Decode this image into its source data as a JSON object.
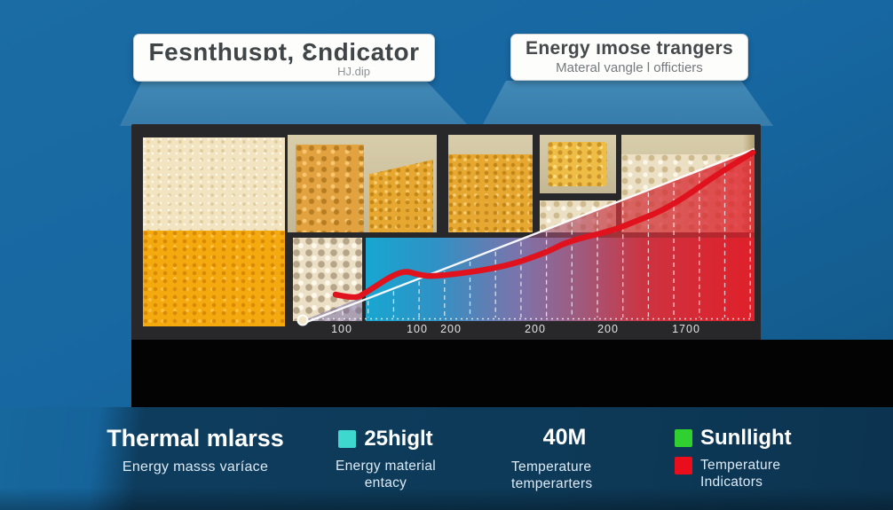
{
  "header": {
    "box1": {
      "title": "Fesnthusɒt, Ɛndicator",
      "subtitle": "HJ.dip"
    },
    "box2": {
      "title": "Energy ımose trangers",
      "subtitle": "Materal vangle l offictiers"
    }
  },
  "panel": {
    "axis_labels": [
      "100",
      "100",
      "200",
      "200",
      "200",
      "1700"
    ]
  },
  "chart_data": {
    "type": "line",
    "title": "",
    "xlabel": "",
    "ylabel": "",
    "x_tick_labels": [
      "100",
      "100",
      "200",
      "200",
      "200",
      "1700"
    ],
    "grid": "dashed-white-vertical",
    "background_gradient": [
      "#17a7d1",
      "#7d73aa",
      "#e0202a"
    ],
    "legend_position": "bottom",
    "series": [
      {
        "name": "Temperature Indicators",
        "color": "#e0121d",
        "points_normalized": [
          [
            0.056,
            0.152
          ],
          [
            0.1,
            0.127
          ],
          [
            0.124,
            0.162
          ],
          [
            0.204,
            0.294
          ],
          [
            0.244,
            0.264
          ],
          [
            0.28,
            0.254
          ],
          [
            0.43,
            0.305
          ],
          [
            0.53,
            0.391
          ],
          [
            0.58,
            0.457
          ],
          [
            0.68,
            0.518
          ],
          [
            0.73,
            0.569
          ],
          [
            0.79,
            0.629
          ],
          [
            0.85,
            0.721
          ],
          [
            0.9,
            0.812
          ],
          [
            0.95,
            0.893
          ],
          [
            0.996,
            0.964
          ]
        ]
      }
    ]
  },
  "stats": [
    {
      "title": "Thermal mlarss",
      "subtitle": "Energy masss varíace"
    },
    {
      "title": "25higlt",
      "subtitle_line1": "Energy material",
      "subtitle_line2": "entacy",
      "swatch_color": "#3ed8cf"
    },
    {
      "title": "40M",
      "subtitle_line1": "Temperature",
      "subtitle_line2": "temperarters"
    },
    {
      "title": "Sunllight",
      "subtitle_line1": "Temperature",
      "subtitle_line2": "Indicators",
      "swatch1_color": "#2fd02f",
      "swatch2_color": "#ea0e1c"
    }
  ],
  "colors": {
    "background_blue": "#1767a2",
    "beam_blue": "#3d83b2",
    "panel_frame": "#28282a",
    "black_band": "#030303",
    "stats_navy": "#0d3a58",
    "chart_cyan": "#17a7d1",
    "chart_purple": "#7d73aa",
    "chart_red": "#e0202a",
    "curve_red": "#e0121d"
  }
}
